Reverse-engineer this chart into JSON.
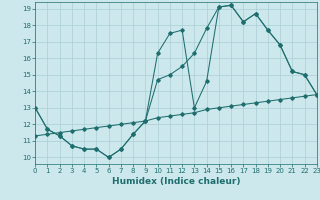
{
  "xlabel": "Humidex (Indice chaleur)",
  "xlim": [
    0,
    23
  ],
  "ylim": [
    9.6,
    19.4
  ],
  "xticks": [
    0,
    1,
    2,
    3,
    4,
    5,
    6,
    7,
    8,
    9,
    10,
    11,
    12,
    13,
    14,
    15,
    16,
    17,
    18,
    19,
    20,
    21,
    22,
    23
  ],
  "yticks": [
    10,
    11,
    12,
    13,
    14,
    15,
    16,
    17,
    18,
    19
  ],
  "bg_color": "#cde8ec",
  "grid_color": "#aacdd4",
  "line_color": "#1e6e6e",
  "lines": [
    {
      "x": [
        0,
        1,
        2,
        3,
        4,
        5,
        6,
        7,
        8,
        9,
        10,
        11,
        12,
        13,
        14,
        15,
        16,
        17,
        18,
        19,
        20,
        21,
        22,
        23
      ],
      "y": [
        13.0,
        11.7,
        11.3,
        10.7,
        10.5,
        10.5,
        10.0,
        10.5,
        11.4,
        12.2,
        16.3,
        17.5,
        17.7,
        13.0,
        14.6,
        19.1,
        19.2,
        18.2,
        18.7,
        17.7,
        16.8,
        15.2,
        15.0,
        13.8
      ]
    },
    {
      "x": [
        0,
        1,
        2,
        3,
        4,
        5,
        6,
        7,
        8,
        9,
        10,
        11,
        12,
        13,
        14,
        15,
        16,
        17,
        18,
        19,
        20,
        21,
        22,
        23
      ],
      "y": [
        13.0,
        11.7,
        11.3,
        10.7,
        10.5,
        10.5,
        10.0,
        10.5,
        11.4,
        12.2,
        14.7,
        15.0,
        15.5,
        16.3,
        17.8,
        19.1,
        19.2,
        18.2,
        18.7,
        17.7,
        16.8,
        15.2,
        15.0,
        13.8
      ]
    },
    {
      "x": [
        0,
        1,
        2,
        3,
        4,
        5,
        6,
        7,
        8,
        9,
        10,
        11,
        12,
        13,
        14,
        15,
        16,
        17,
        18,
        19,
        20,
        21,
        22,
        23
      ],
      "y": [
        11.3,
        11.4,
        11.5,
        11.6,
        11.7,
        11.8,
        11.9,
        12.0,
        12.1,
        12.2,
        12.4,
        12.5,
        12.6,
        12.7,
        12.9,
        13.0,
        13.1,
        13.2,
        13.3,
        13.4,
        13.5,
        13.6,
        13.7,
        13.8
      ]
    }
  ]
}
